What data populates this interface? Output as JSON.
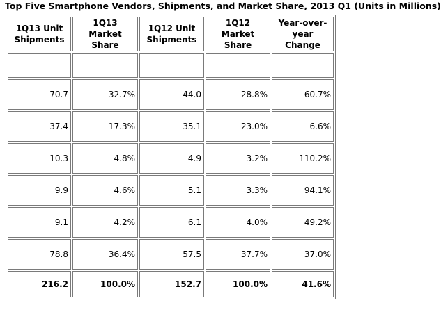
{
  "title": "Top Five Smartphone Vendors, Shipments, and Market Share, 2013 Q1 (Units in Millions)",
  "chart_data": {
    "type": "table",
    "title": "Top Five Smartphone Vendors, Shipments, and Market Share, 2013 Q1 (Units in Millions)",
    "columns": [
      "1Q13 Unit Shipments",
      "1Q13 Market Share",
      "1Q12 Unit Shipments",
      "1Q12 Market Share",
      "Year-over-year Change"
    ],
    "rows": [
      [
        "",
        "",
        "",
        "",
        ""
      ],
      [
        "70.7",
        "32.7%",
        "44.0",
        "28.8%",
        "60.7%"
      ],
      [
        "37.4",
        "17.3%",
        "35.1",
        "23.0%",
        "6.6%"
      ],
      [
        "10.3",
        "4.8%",
        "4.9",
        "3.2%",
        "110.2%"
      ],
      [
        "9.9",
        "4.6%",
        "5.1",
        "3.3%",
        "94.1%"
      ],
      [
        "9.1",
        "4.2%",
        "6.1",
        "4.0%",
        "49.2%"
      ],
      [
        "78.8",
        "36.4%",
        "57.5",
        "37.7%",
        "37.0%"
      ]
    ],
    "total_row": [
      "216.2",
      "100.0%",
      "152.7",
      "100.0%",
      "41.6%"
    ]
  }
}
